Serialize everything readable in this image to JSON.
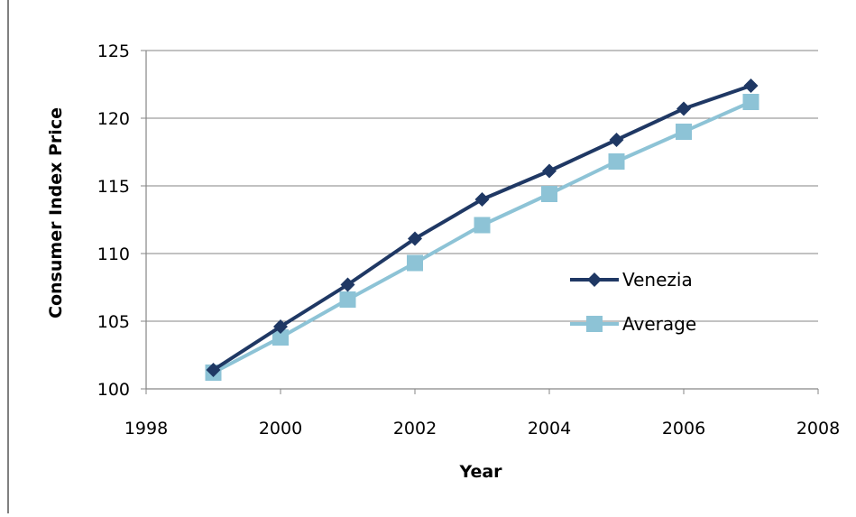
{
  "chart_data": {
    "type": "line",
    "title": "",
    "xlabel": "Year",
    "ylabel": "Consumer Index Price",
    "xlim": [
      1998,
      2008
    ],
    "ylim": [
      100,
      125
    ],
    "x_ticks": [
      1998,
      2000,
      2002,
      2004,
      2006,
      2008
    ],
    "y_ticks": [
      100,
      105,
      110,
      115,
      120,
      125
    ],
    "grid": "horizontal",
    "legend_position": "right-middle",
    "series": [
      {
        "name": "Venezia",
        "color": "#1F3864",
        "marker": "diamond",
        "x": [
          1999,
          2000,
          2001,
          2002,
          2003,
          2004,
          2005,
          2006,
          2007
        ],
        "y": [
          101.4,
          104.6,
          107.7,
          111.1,
          114.0,
          116.1,
          118.4,
          120.7,
          122.4
        ]
      },
      {
        "name": "Average",
        "color": "#8DC3D6",
        "marker": "square",
        "x": [
          1999,
          2000,
          2001,
          2002,
          2003,
          2004,
          2005,
          2006,
          2007
        ],
        "y": [
          101.2,
          103.8,
          106.6,
          109.3,
          112.1,
          114.4,
          116.8,
          119.0,
          121.2
        ]
      }
    ]
  }
}
